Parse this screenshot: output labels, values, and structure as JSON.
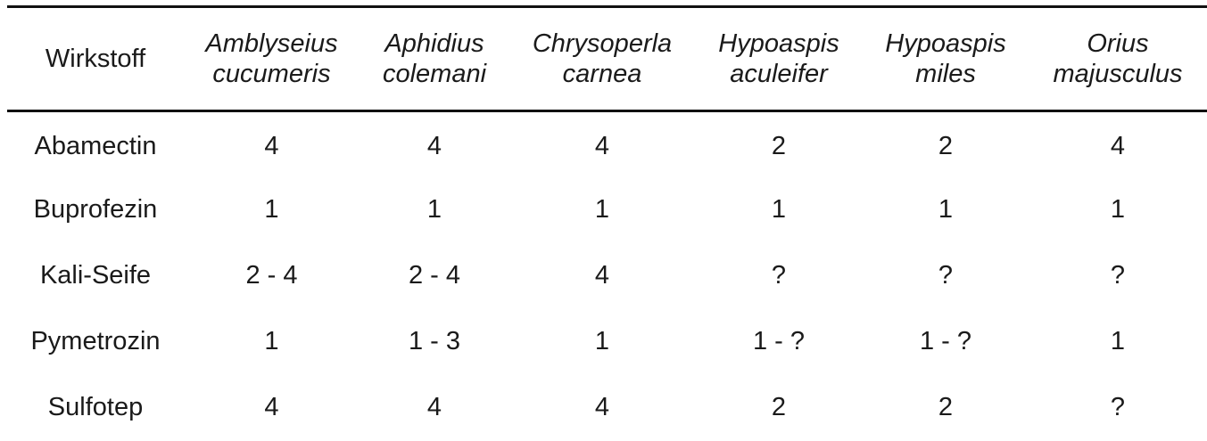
{
  "table": {
    "header": {
      "first": "Wirkstoff",
      "species": [
        {
          "line1": "Amblyseius",
          "line2": "cucumeris"
        },
        {
          "line1": "Aphidius",
          "line2": "colemani"
        },
        {
          "line1": "Chrysoperla",
          "line2": "carnea"
        },
        {
          "line1": "Hypoaspis",
          "line2": "aculeifer"
        },
        {
          "line1": "Hypoaspis",
          "line2": "miles"
        },
        {
          "line1": "Orius",
          "line2": "majusculus"
        }
      ]
    },
    "rows": [
      {
        "name": "Abamectin",
        "values": [
          "4",
          "4",
          "4",
          "2",
          "2",
          "4"
        ]
      },
      {
        "name": "Buprofezin",
        "values": [
          "1",
          "1",
          "1",
          "1",
          "1",
          "1"
        ]
      },
      {
        "name": "Kali-Seife",
        "values": [
          "2 - 4",
          "2 - 4",
          "4",
          "?",
          "?",
          "?"
        ]
      },
      {
        "name": "Pymetrozin",
        "values": [
          "1",
          "1 - 3",
          "1",
          "1 - ?",
          "1 - ?",
          "1"
        ]
      },
      {
        "name": "Sulfotep",
        "values": [
          "4",
          "4",
          "4",
          "2",
          "2",
          "?"
        ]
      }
    ]
  }
}
